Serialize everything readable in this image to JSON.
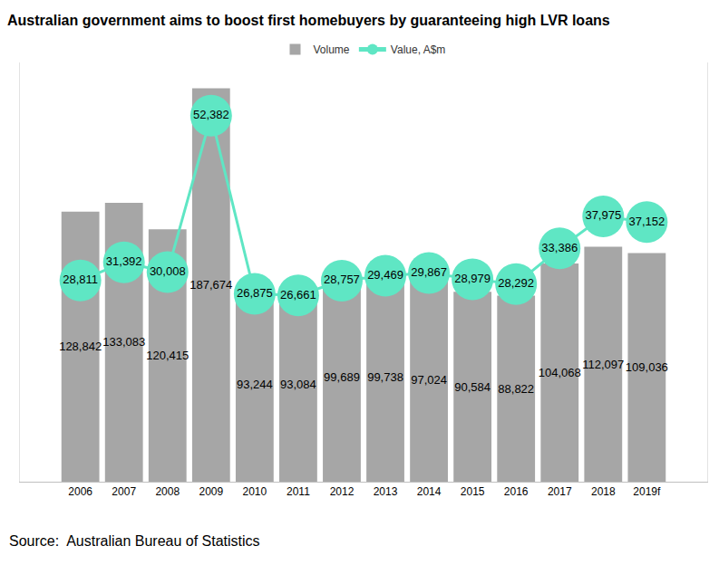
{
  "chart_data": {
    "type": "combo",
    "title": "Australian government aims to boost first homebuyers by guaranteeing high LVR loans",
    "annotations": [
      "Source:  Australian Bureau of Statistics"
    ],
    "categories": [
      "2006",
      "2007",
      "2008",
      "2009",
      "2010",
      "2011",
      "2012",
      "2013",
      "2014",
      "2015",
      "2016",
      "2017",
      "2018",
      "2019f"
    ],
    "series": [
      {
        "name": "Volume",
        "type": "bar",
        "color": "#A6A6A6",
        "values": [
          128842,
          133083,
          120415,
          187674,
          93244,
          93084,
          99689,
          99738,
          97024,
          90584,
          88822,
          104068,
          112097,
          109036
        ],
        "value_labels": [
          "128,842",
          "133,083",
          "120,415",
          "187,674",
          "93,244",
          "93,084",
          "99,689",
          "99,738",
          "97,024",
          "90,584",
          "88,822",
          "104,068",
          "112,097",
          "109,036"
        ]
      },
      {
        "name": "Value, A$m",
        "type": "line",
        "axis": "y2",
        "color": "#5FE6C4",
        "marker": "circle",
        "line_style": "solid",
        "values": [
          28811,
          31392,
          30008,
          52382,
          26875,
          26661,
          28757,
          29469,
          29867,
          28979,
          28292,
          33386,
          37975,
          37152
        ],
        "value_labels": [
          "28,811",
          "31,392",
          "30,008",
          "52,382",
          "26,875",
          "26,661",
          "28,757",
          "29,469",
          "29,867",
          "28,979",
          "28,292",
          "33,386",
          "37,975",
          "37,152"
        ]
      }
    ],
    "ylim": [
      0,
      200000
    ],
    "y2lim": [
      0,
      60000
    ],
    "tick_labels": "x",
    "grid": false,
    "legend": "top",
    "data_labels": true
  }
}
